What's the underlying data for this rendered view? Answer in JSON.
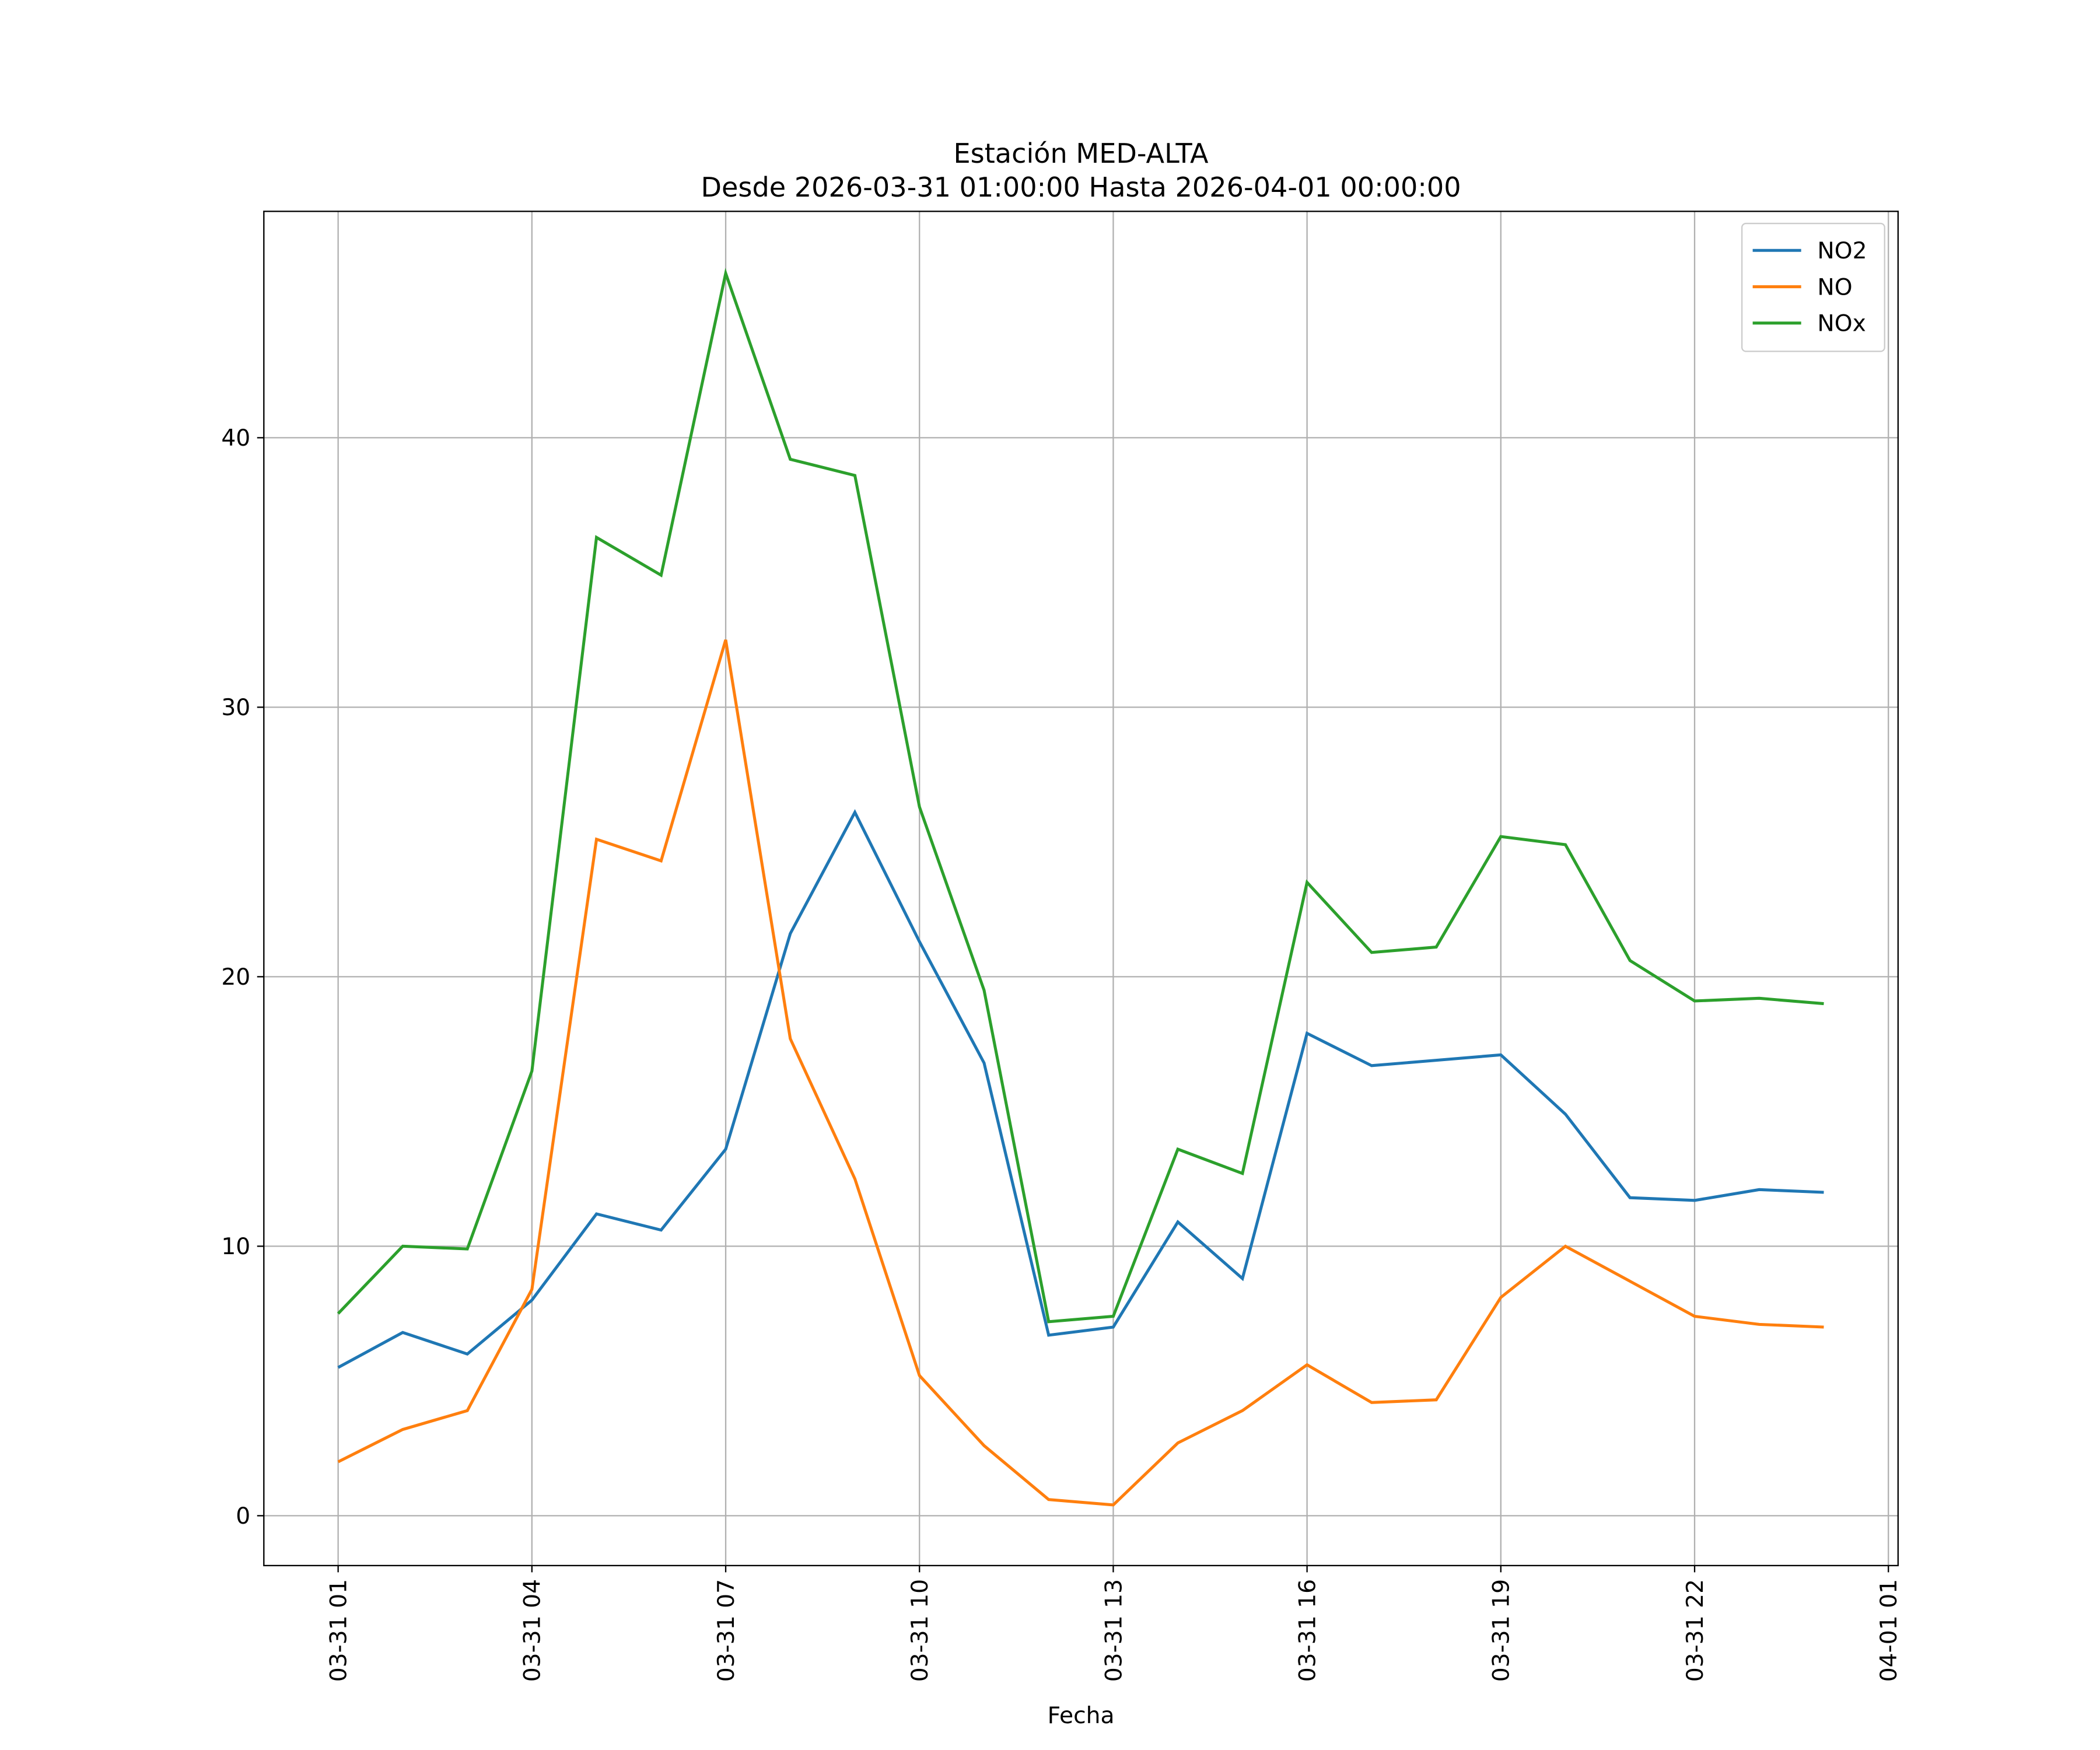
{
  "chart_data": {
    "type": "line",
    "title": "Estación MED-ALTA",
    "subtitle": "Desde 2026-03-31 01:00:00 Hasta 2026-04-01 00:00:00",
    "x_label": "Fecha",
    "x": [
      "03-31 01",
      "03-31 02",
      "03-31 03",
      "03-31 04",
      "03-31 05",
      "03-31 06",
      "03-31 07",
      "03-31 08",
      "03-31 09",
      "03-31 10",
      "03-31 11",
      "03-31 12",
      "03-31 13",
      "03-31 14",
      "03-31 15",
      "03-31 16",
      "03-31 17",
      "03-31 18",
      "03-31 19",
      "03-31 20",
      "03-31 21",
      "03-31 22",
      "03-31 23",
      "04-01 00"
    ],
    "series": [
      {
        "name": "NO2",
        "color": "#1f77b4",
        "values": [
          5.5,
          6.8,
          6.0,
          8.0,
          11.2,
          10.6,
          13.6,
          21.6,
          26.1,
          21.3,
          16.8,
          6.7,
          7.0,
          10.9,
          8.8,
          17.9,
          16.7,
          16.9,
          17.1,
          14.9,
          11.8,
          11.7,
          12.1,
          12.0
        ]
      },
      {
        "name": "NO",
        "color": "#ff7f0e",
        "values": [
          2.0,
          3.2,
          3.9,
          8.4,
          25.1,
          24.3,
          32.5,
          17.7,
          12.5,
          5.2,
          2.6,
          0.6,
          0.4,
          2.7,
          3.9,
          5.6,
          4.2,
          4.3,
          8.1,
          10.0,
          8.7,
          7.4,
          7.1,
          7.0
        ]
      },
      {
        "name": "NOx",
        "color": "#2ca02c",
        "values": [
          7.5,
          10.0,
          9.9,
          16.5,
          36.3,
          34.9,
          46.1,
          39.2,
          38.6,
          26.3,
          19.5,
          7.2,
          7.4,
          13.6,
          12.7,
          23.5,
          20.9,
          21.1,
          25.2,
          24.9,
          20.6,
          19.1,
          19.2,
          19.0
        ]
      }
    ],
    "xlim": [
      "03-30 23:51",
      "04-01 01:09"
    ],
    "xticks": [
      "03-31 01",
      "03-31 04",
      "03-31 07",
      "03-31 10",
      "03-31 13",
      "03-31 16",
      "03-31 19",
      "03-31 22",
      "04-01 01"
    ],
    "ylim": [
      -1.85,
      48.4
    ],
    "yticks": [
      0,
      10,
      20,
      30,
      40
    ],
    "grid": true,
    "legend": "upper right"
  }
}
